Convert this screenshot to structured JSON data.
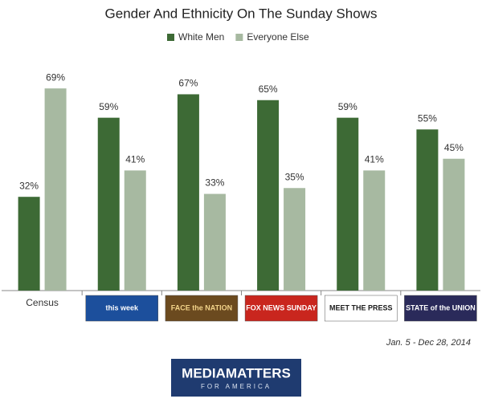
{
  "chart_data": {
    "type": "bar",
    "title": "Gender And Ethnicity On The Sunday Shows",
    "categories": [
      "Census",
      "this week",
      "FACE the NATION",
      "FOX NEWS SUNDAY",
      "MEET THE PRESS",
      "STATE of the UNION"
    ],
    "series": [
      {
        "name": "White Men",
        "color": "#3d6a35",
        "values": [
          32,
          59,
          67,
          65,
          59,
          55
        ],
        "value_labels": [
          "32%",
          "59%",
          "67%",
          "65%",
          "59%",
          "55%"
        ]
      },
      {
        "name": "Everyone Else",
        "color": "#a7b9a1",
        "values": [
          69,
          41,
          33,
          35,
          41,
          45
        ],
        "value_labels": [
          "69%",
          "41%",
          "33%",
          "35%",
          "41%",
          "45%"
        ]
      }
    ],
    "legend": "top",
    "date_note": "Jan. 5 - Dec 28, 2014",
    "source": "MEDIAMATTERS",
    "source_sub": "FOR AMERICA"
  }
}
